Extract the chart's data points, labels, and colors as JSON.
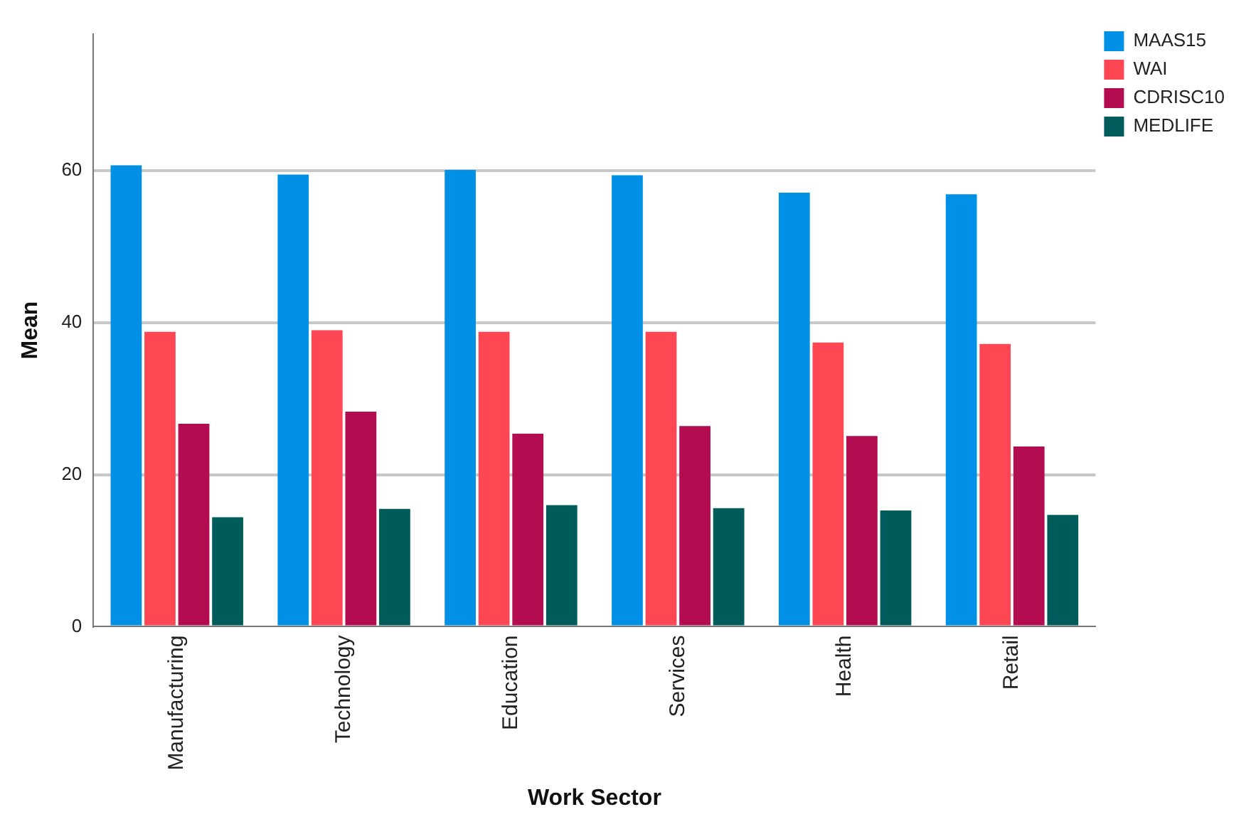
{
  "chart_data": {
    "type": "bar",
    "xlabel": "Work Sector",
    "ylabel": "Mean",
    "categories": [
      "Manufacturing",
      "Technology",
      "Education",
      "Services",
      "Health",
      "Retail"
    ],
    "series": [
      {
        "name": "MAAS15",
        "color": "#0091e6",
        "values": [
          60.7,
          59.5,
          60.1,
          59.4,
          57.1,
          56.9
        ]
      },
      {
        "name": "WAI",
        "color": "#ff4653",
        "values": [
          38.8,
          39.0,
          38.8,
          38.8,
          37.4,
          37.2
        ]
      },
      {
        "name": "CDRISC10",
        "color": "#b30c50",
        "values": [
          26.7,
          28.3,
          25.4,
          26.4,
          25.1,
          23.7
        ]
      },
      {
        "name": "MEDLIFE",
        "color": "#005c5a",
        "values": [
          14.4,
          15.5,
          16.0,
          15.6,
          15.3,
          14.7
        ]
      }
    ],
    "ylim": [
      0,
      78
    ],
    "yticks": [
      0,
      20,
      40,
      60
    ],
    "grid": "y",
    "legend": "top right"
  }
}
